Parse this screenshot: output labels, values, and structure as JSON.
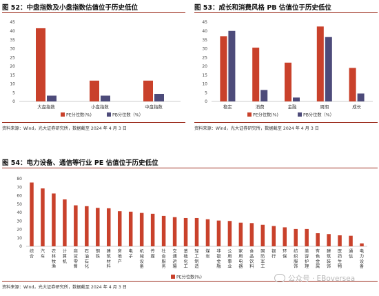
{
  "figures": [
    {
      "title": "图 52：中盘指数及小盘指数估值位于历史低位",
      "source": "资料来源：Wind，光大证券研究所，数据截至 2024 年 4 月 3 日"
    },
    {
      "title": "图 53：成长和消费风格 PB 估值位于历史低位",
      "source": "资料来源：Wind，光大证券研究所，数据截至 2024 年 4 月 3 日"
    },
    {
      "title": "图 54：电力设备、通信等行业 PE 估值位于历史低位",
      "source": "资料来源：Wind，光大证券研究所，数据截至 2024 年 4 月 3 日"
    }
  ],
  "colors": {
    "pe": "#c9412b",
    "pb": "#4d4b7a",
    "rule": "#9b2a1a"
  },
  "watermark": {
    "icon": "wechat-icon",
    "text": "公众号 · EBoversea"
  },
  "chart_data": [
    {
      "type": "bar",
      "categories": [
        "大盘指数",
        "小盘指数",
        "中盘指数"
      ],
      "series": [
        {
          "name": "PE分位数(%)",
          "values": [
            41.5,
            11.8,
            11.8
          ]
        },
        {
          "name": "PB分位数（%）",
          "values": [
            3.3,
            3.3,
            4.3
          ]
        }
      ],
      "ylim": [
        0,
        45
      ],
      "yticks": [
        0,
        5,
        10,
        15,
        20,
        25,
        30,
        35,
        40,
        45
      ],
      "legend": "bottom"
    },
    {
      "type": "bar",
      "categories": [
        "稳定",
        "消费",
        "金融",
        "周期",
        "成长"
      ],
      "series": [
        {
          "name": "PE分位数(%)",
          "values": [
            37,
            30.5,
            22,
            42.5,
            19
          ]
        },
        {
          "name": "PB分位数（%）",
          "values": [
            40,
            6.5,
            2.2,
            36.5,
            4.5
          ]
        }
      ],
      "ylim": [
        0,
        45
      ],
      "yticks": [
        0,
        5,
        10,
        15,
        20,
        25,
        30,
        35,
        40,
        45
      ],
      "legend": "bottom"
    },
    {
      "type": "bar",
      "categories": [
        "综合",
        "汽车",
        "农林牧渔",
        "计算机",
        "商贸零售",
        "石油石化",
        "钢铁",
        "建筑材料",
        "房地产",
        "电子",
        "机械设备",
        "传媒",
        "社会服务",
        "交通运输",
        "基础化工",
        "轻工制造",
        "煤炭",
        "非银金融",
        "公用事业",
        "家用电器",
        "食品饮料",
        "国防军工",
        "银行",
        "环保",
        "纺织服饰",
        "美容护理",
        "有色金属",
        "建筑装饰",
        "医药生物",
        "通信",
        "电力设备"
      ],
      "series": [
        {
          "name": "PE分位数(%)",
          "values": [
            75.5,
            68.5,
            62.5,
            55.5,
            48.5,
            47.5,
            45.5,
            45,
            41.5,
            41,
            39.5,
            38.5,
            36,
            34.5,
            33.5,
            33.5,
            32,
            30.5,
            30,
            28,
            27.5,
            25.5,
            24,
            22.5,
            20.5,
            20.5,
            15.5,
            14.5,
            13,
            12.5,
            3.5
          ]
        }
      ],
      "ylim": [
        0,
        80
      ],
      "yticks": [
        0,
        10,
        20,
        30,
        40,
        50,
        60,
        70,
        80
      ],
      "legend": "bottom"
    }
  ]
}
